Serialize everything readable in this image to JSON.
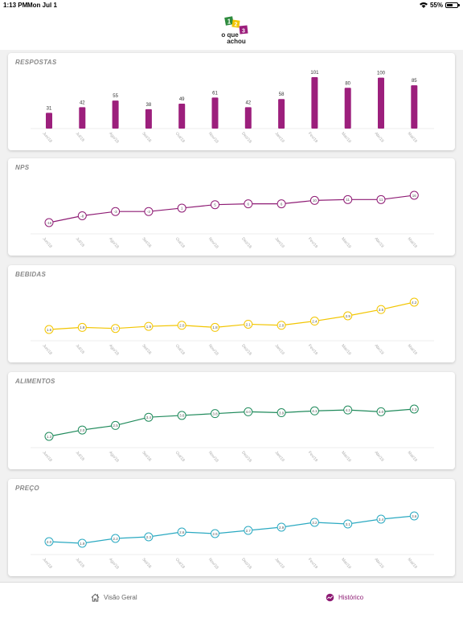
{
  "status_bar": {
    "time": "1:13 PM",
    "date": "Mon Jul 1",
    "battery": "55%",
    "battery_level": 0.55
  },
  "header": {
    "logo_text_line1": "o que",
    "logo_text_line2": "achou",
    "logo_digits": [
      "1",
      "2",
      "3"
    ]
  },
  "months": [
    "Jun/18",
    "Jul/18",
    "Ago/18",
    "Set/18",
    "Out/18",
    "Nov/18",
    "Dez/18",
    "Jan/19",
    "Fev/19",
    "Mar/19",
    "Abr/19",
    "Mai/19"
  ],
  "cards": [
    {
      "id": "respostas",
      "title": "RESPOSTAS",
      "type": "bar",
      "color": "#9c1f7c",
      "values": [
        31,
        42,
        55,
        38,
        49,
        61,
        42,
        58,
        101,
        80,
        100,
        85
      ],
      "labels": [
        "31",
        "42",
        "55",
        "38",
        "49",
        "61",
        "42",
        "58",
        "101",
        "80",
        "100",
        "85"
      ]
    },
    {
      "id": "nps",
      "title": "NPS",
      "type": "line",
      "color": "#8e1b74",
      "values": [
        -16,
        -8,
        -3,
        -3,
        1,
        5,
        6,
        6,
        10,
        11,
        11,
        16
      ],
      "labels": [
        "-16",
        "-8",
        "-3",
        "-3",
        "1",
        "5",
        "6",
        "6",
        "10",
        "11",
        "11",
        "16"
      ]
    },
    {
      "id": "bebidas",
      "title": "BEBIDAS",
      "type": "line",
      "color": "#f2c500",
      "values": [
        1.6,
        1.8,
        1.7,
        1.9,
        2.0,
        1.8,
        2.1,
        2.0,
        2.4,
        2.9,
        3.5,
        4.2
      ],
      "labels": [
        "1.6",
        "1.8",
        "1.7",
        "1.9",
        "2.0",
        "1.8",
        "2.1",
        "2.0",
        "2.4",
        "2.9",
        "3.5",
        "4.2"
      ]
    },
    {
      "id": "alimentos",
      "title": "ALIMENTOS",
      "type": "line",
      "color": "#1f8a5b",
      "values": [
        1.3,
        2.0,
        2.5,
        3.4,
        3.6,
        3.8,
        4.0,
        3.9,
        4.1,
        4.2,
        4.0,
        4.3
      ],
      "labels": [
        "1.3",
        "2.0",
        "2.5",
        "3.4",
        "3.6",
        "3.8",
        "4.0",
        "3.9",
        "4.1",
        "4.2",
        "4.0",
        "4.3"
      ]
    },
    {
      "id": "preco",
      "title": "PREÇO",
      "type": "line",
      "color": "#2aa9c1",
      "values": [
        2.0,
        1.9,
        2.2,
        2.3,
        2.6,
        2.5,
        2.7,
        2.9,
        3.2,
        3.1,
        3.4,
        3.6
      ],
      "labels": [
        "2.0",
        "1.9",
        "2.2",
        "2.3",
        "2.6",
        "2.5",
        "2.7",
        "2.9",
        "3.2",
        "3.1",
        "3.4",
        "3.6"
      ]
    }
  ],
  "bottom_nav": {
    "overview_label": "Visão Geral",
    "overview_icon": "home-icon",
    "history_label": "Histórico",
    "history_icon": "history-icon",
    "active": "history",
    "active_color": "#8e1b74"
  }
}
